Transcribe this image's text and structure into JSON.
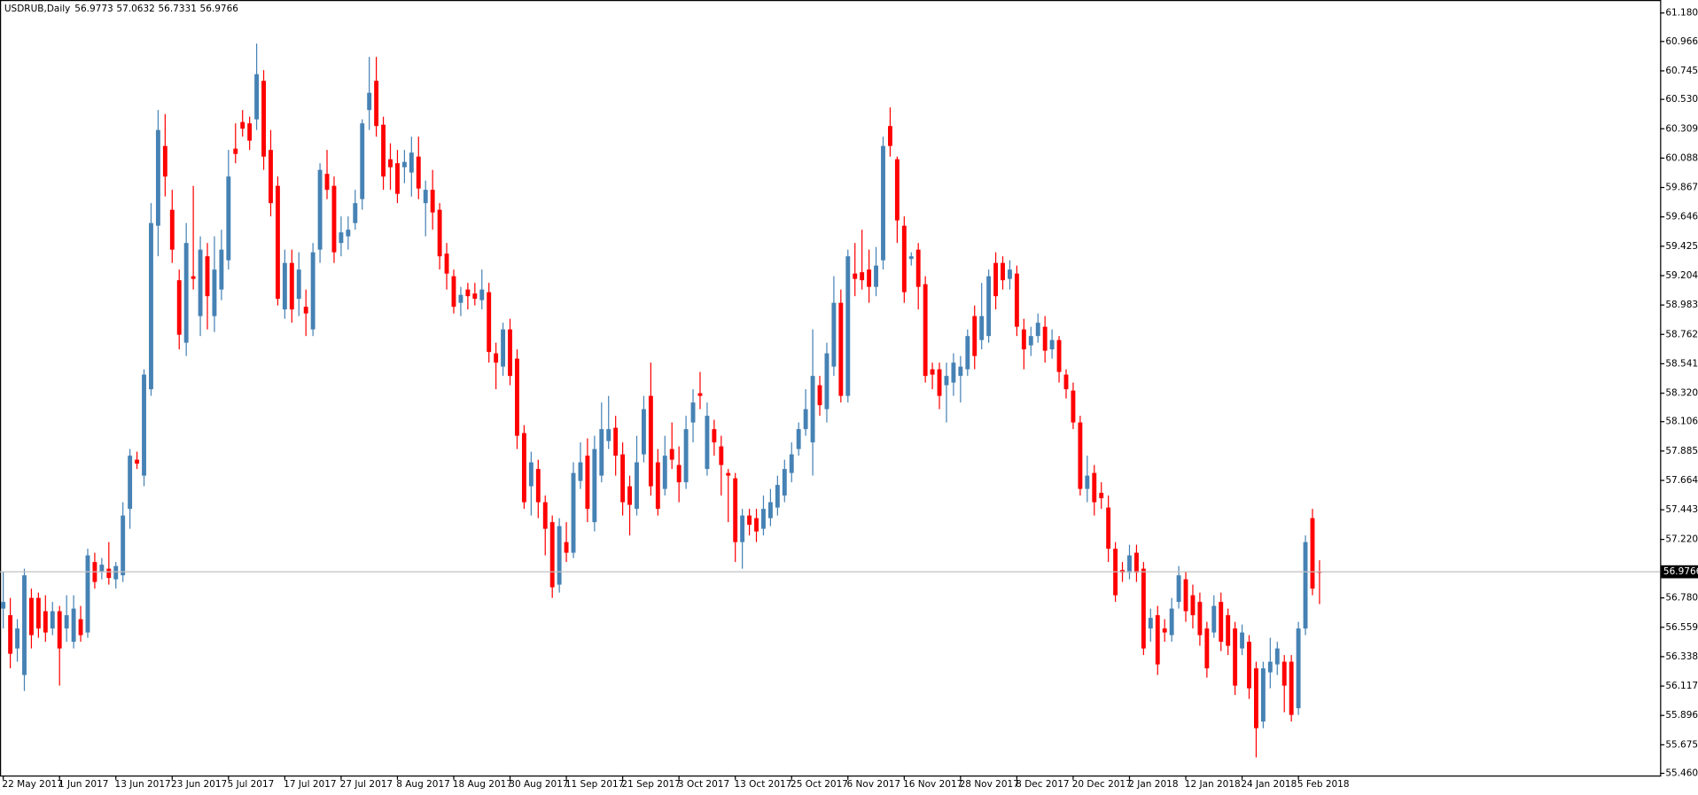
{
  "chart_data": {
    "type": "candlestick",
    "title": "USDRUB,Daily",
    "up_color": "#4682b4",
    "down_color": "#ff0000",
    "price_line_color": "#c0c0c0",
    "ylim": [
      55.444,
      61.278
    ],
    "yticks": [
      {
        "value": 61.1805,
        "label": "61.1805"
      },
      {
        "value": 60.966,
        "label": "60.9660"
      },
      {
        "value": 60.745,
        "label": "60.7450"
      },
      {
        "value": 60.5305,
        "label": "60.5305"
      },
      {
        "value": 60.3095,
        "label": "60.3095"
      },
      {
        "value": 60.0885,
        "label": "60.0885"
      },
      {
        "value": 59.8675,
        "label": "59.8675"
      },
      {
        "value": 59.6465,
        "label": "59.6465"
      },
      {
        "value": 59.4255,
        "label": "59.4255"
      },
      {
        "value": 59.2045,
        "label": "59.2045"
      },
      {
        "value": 58.9835,
        "label": "58.9835"
      },
      {
        "value": 58.7625,
        "label": "58.7625"
      },
      {
        "value": 58.5415,
        "label": "58.5415"
      },
      {
        "value": 58.32,
        "label": "58.3200"
      },
      {
        "value": 58.106,
        "label": "58.1060"
      },
      {
        "value": 57.885,
        "label": "57.8850"
      },
      {
        "value": 57.664,
        "label": "57.6640"
      },
      {
        "value": 57.443,
        "label": "57.4430"
      },
      {
        "value": 57.22,
        "label": "57.2200"
      },
      {
        "value": 56.78,
        "label": "56.7800"
      },
      {
        "value": 56.559,
        "label": "56.5590"
      },
      {
        "value": 56.338,
        "label": "56.3380"
      },
      {
        "value": 56.117,
        "label": "56.1170"
      },
      {
        "value": 55.896,
        "label": "55.8960"
      },
      {
        "value": 55.675,
        "label": "55.6750"
      },
      {
        "value": 55.4605,
        "label": "55.4605"
      }
    ],
    "categories": [
      "22 May 2017",
      null,
      null,
      null,
      null,
      null,
      null,
      null,
      "1 Jun 2017",
      null,
      null,
      null,
      null,
      null,
      null,
      null,
      "13 Jun 2017",
      null,
      null,
      null,
      null,
      null,
      null,
      null,
      "23 Jun 2017",
      null,
      null,
      null,
      null,
      null,
      null,
      null,
      "5 Jul 2017",
      null,
      null,
      null,
      null,
      null,
      null,
      null,
      "17 Jul 2017",
      null,
      null,
      null,
      null,
      null,
      null,
      null,
      "27 Jul 2017",
      null,
      null,
      null,
      null,
      null,
      null,
      null,
      "8 Aug 2017",
      null,
      null,
      null,
      null,
      null,
      null,
      null,
      "18 Aug 2017",
      null,
      null,
      null,
      null,
      null,
      null,
      null,
      "30 Aug 2017",
      null,
      null,
      null,
      null,
      null,
      null,
      null,
      "11 Sep 2017",
      null,
      null,
      null,
      null,
      null,
      null,
      null,
      "21 Sep 2017",
      null,
      null,
      null,
      null,
      null,
      null,
      null,
      "3 Oct 2017",
      null,
      null,
      null,
      null,
      null,
      null,
      null,
      "13 Oct 2017",
      null,
      null,
      null,
      null,
      null,
      null,
      null,
      "25 Oct 2017",
      null,
      null,
      null,
      null,
      null,
      null,
      null,
      "6 Nov 2017",
      null,
      null,
      null,
      null,
      null,
      null,
      null,
      "16 Nov 2017",
      null,
      null,
      null,
      null,
      null,
      null,
      null,
      "28 Nov 2017",
      null,
      null,
      null,
      null,
      null,
      null,
      null,
      "8 Dec 2017",
      null,
      null,
      null,
      null,
      null,
      null,
      null,
      "20 Dec 2017",
      null,
      null,
      null,
      null,
      null,
      null,
      null,
      "2 Jan 2018",
      null,
      null,
      null,
      null,
      null,
      null,
      null,
      "12 Jan 2018",
      null,
      null,
      null,
      null,
      null,
      null,
      null,
      "24 Jan 2018",
      null,
      null,
      null,
      null,
      null,
      null,
      null,
      "5 Feb 2018",
      null,
      null,
      null
    ],
    "open": [
      56.7,
      56.65,
      56.4,
      56.2,
      56.78,
      56.78,
      56.68,
      56.55,
      56.68,
      56.55,
      56.45,
      56.62,
      56.52,
      57.05,
      56.98,
      57.0,
      56.92,
      56.95,
      57.45,
      57.82,
      57.7,
      58.35,
      59.58,
      60.18,
      59.7,
      59.17,
      58.7,
      59.2,
      58.9,
      59.35,
      58.9,
      59.1,
      59.32,
      60.16,
      60.36,
      60.35,
      60.38,
      60.67,
      60.15,
      59.88,
      58.95,
      59.3,
      59.03,
      58.97,
      58.8,
      59.4,
      59.97,
      59.88,
      59.45,
      59.5,
      59.6,
      59.78,
      60.45,
      60.67,
      60.34,
      60.08,
      60.05,
      60.02,
      59.98,
      60.1,
      59.75,
      59.85,
      59.7,
      59.37,
      59.2,
      59.0,
      59.1,
      59.07,
      59.02,
      59.08,
      58.62,
      58.52,
      58.8,
      58.58,
      58.02,
      57.62,
      57.75,
      57.5,
      57.35,
      56.88,
      57.2,
      57.12,
      57.66,
      57.85,
      57.35,
      57.7,
      57.96,
      58.06,
      57.86,
      57.62,
      57.45,
      57.86,
      58.3,
      57.8,
      57.6,
      57.9,
      57.78,
      57.65,
      58.1,
      58.32,
      57.75,
      58.05,
      57.92,
      57.72,
      57.68,
      57.2,
      57.4,
      57.38,
      57.3,
      57.38,
      57.46,
      57.55,
      57.72,
      57.9,
      58.05,
      57.95,
      58.38,
      58.2,
      58.52,
      59.0,
      58.3,
      59.22,
      59.23,
      59.25,
      59.12,
      59.32,
      60.33,
      60.08,
      59.58,
      59.33,
      59.4,
      59.14,
      58.5,
      58.5,
      58.38,
      58.4,
      58.45,
      58.5,
      58.9,
      58.72,
      58.75,
      59.3,
      59.3,
      59.18,
      59.22,
      58.8,
      58.68,
      58.75,
      58.82,
      58.65,
      58.72,
      58.46,
      58.34,
      58.1,
      57.6,
      57.72,
      57.57,
      57.46,
      57.15,
      56.99,
      56.97,
      57.12,
      57.0,
      56.55,
      56.65,
      56.55,
      56.5,
      56.75,
      56.92,
      56.8,
      56.75,
      56.55,
      56.52,
      56.75,
      56.65,
      56.55,
      56.4,
      56.45,
      56.25,
      55.85,
      56.22,
      56.28,
      56.3,
      56.3,
      55.95,
      56.55,
      57.38,
      56.9773
    ],
    "high": [
      56.98,
      56.78,
      56.62,
      57.0,
      56.85,
      56.82,
      56.8,
      56.75,
      56.72,
      56.8,
      56.8,
      56.72,
      57.15,
      57.12,
      57.08,
      57.2,
      57.05,
      57.5,
      57.9,
      57.88,
      58.5,
      59.75,
      60.45,
      60.42,
      59.85,
      59.25,
      59.6,
      59.88,
      59.5,
      59.45,
      59.5,
      59.55,
      60.15,
      60.35,
      60.45,
      60.4,
      60.95,
      60.75,
      60.3,
      59.95,
      59.4,
      59.4,
      59.38,
      59.1,
      59.45,
      60.05,
      60.15,
      59.95,
      59.65,
      59.65,
      59.85,
      60.38,
      60.85,
      60.85,
      60.4,
      60.2,
      60.15,
      60.15,
      60.25,
      60.25,
      59.92,
      60.0,
      59.75,
      59.45,
      59.25,
      59.12,
      59.15,
      59.15,
      59.25,
      59.15,
      58.7,
      58.85,
      58.88,
      58.65,
      58.08,
      57.88,
      57.82,
      57.55,
      57.4,
      57.38,
      57.35,
      57.8,
      57.95,
      57.98,
      58.0,
      58.25,
      58.3,
      58.15,
      57.95,
      57.7,
      58.0,
      58.3,
      58.55,
      57.9,
      58.0,
      58.1,
      57.92,
      58.15,
      58.35,
      58.48,
      58.25,
      58.12,
      58.0,
      57.75,
      57.72,
      57.45,
      57.45,
      57.45,
      57.55,
      57.6,
      57.7,
      57.82,
      57.95,
      58.1,
      58.35,
      58.8,
      58.45,
      58.7,
      59.2,
      59.1,
      59.4,
      59.45,
      59.55,
      59.4,
      59.42,
      60.25,
      60.47,
      60.1,
      59.65,
      59.38,
      59.45,
      59.2,
      58.55,
      58.55,
      58.55,
      58.62,
      58.6,
      58.8,
      58.98,
      59.15,
      59.25,
      59.38,
      59.35,
      59.32,
      59.28,
      58.88,
      58.82,
      58.92,
      58.9,
      58.8,
      58.75,
      58.5,
      58.4,
      58.15,
      57.85,
      57.78,
      57.65,
      57.55,
      57.2,
      57.05,
      57.18,
      57.18,
      57.05,
      56.7,
      56.72,
      56.62,
      56.78,
      57.02,
      56.98,
      56.88,
      56.82,
      56.6,
      56.8,
      56.82,
      56.7,
      56.6,
      56.58,
      56.5,
      56.3,
      56.3,
      56.48,
      56.45,
      56.35,
      56.35,
      56.6,
      57.25,
      57.45,
      57.0632
    ],
    "low": [
      56.55,
      56.25,
      56.3,
      56.08,
      56.4,
      56.48,
      56.45,
      56.5,
      56.12,
      56.45,
      56.4,
      56.45,
      56.48,
      56.85,
      56.92,
      56.88,
      56.85,
      56.9,
      57.3,
      57.75,
      57.62,
      58.3,
      59.35,
      59.8,
      59.3,
      58.65,
      58.6,
      59.1,
      58.75,
      58.8,
      58.78,
      59.02,
      59.25,
      60.05,
      60.25,
      60.15,
      60.3,
      60.0,
      59.65,
      58.98,
      58.88,
      58.85,
      58.9,
      58.75,
      58.75,
      59.3,
      59.78,
      59.3,
      59.35,
      59.4,
      59.55,
      59.7,
      60.3,
      60.25,
      59.85,
      59.85,
      59.75,
      59.9,
      59.8,
      59.78,
      59.5,
      59.55,
      59.25,
      59.1,
      58.92,
      58.9,
      58.95,
      58.98,
      58.95,
      58.55,
      58.35,
      58.45,
      58.38,
      57.9,
      57.45,
      57.4,
      57.38,
      57.1,
      56.78,
      56.82,
      57.05,
      57.08,
      57.6,
      57.35,
      57.28,
      57.65,
      57.9,
      57.7,
      57.4,
      57.25,
      57.4,
      57.8,
      57.55,
      57.4,
      57.55,
      57.75,
      57.5,
      57.6,
      57.95,
      58.2,
      57.7,
      57.85,
      57.55,
      57.35,
      57.05,
      57.0,
      57.25,
      57.2,
      57.25,
      57.32,
      57.4,
      57.5,
      57.65,
      57.85,
      58.0,
      57.7,
      58.15,
      58.1,
      58.45,
      58.25,
      58.25,
      59.05,
      59.1,
      59.0,
      59.05,
      59.25,
      60.1,
      59.45,
      59.0,
      59.28,
      58.95,
      58.4,
      58.35,
      58.2,
      58.1,
      58.3,
      58.25,
      58.45,
      58.5,
      58.65,
      58.7,
      58.95,
      59.1,
      59.1,
      58.75,
      58.5,
      58.6,
      58.7,
      58.55,
      58.58,
      58.4,
      58.28,
      58.05,
      57.55,
      57.5,
      57.4,
      57.45,
      57.05,
      56.75,
      56.9,
      56.92,
      56.9,
      56.35,
      56.45,
      56.2,
      56.45,
      56.45,
      56.7,
      56.6,
      56.55,
      56.42,
      56.18,
      56.48,
      56.38,
      56.35,
      56.05,
      56.35,
      56.02,
      55.58,
      55.8,
      56.1,
      56.2,
      55.92,
      55.85,
      55.9,
      56.5,
      56.8,
      56.7331
    ],
    "close": [
      56.75,
      56.36,
      56.55,
      56.95,
      56.5,
      56.55,
      56.52,
      56.68,
      56.4,
      56.65,
      56.7,
      56.5,
      57.1,
      56.9,
      57.03,
      56.93,
      57.02,
      57.4,
      57.85,
      57.79,
      58.46,
      59.6,
      60.3,
      59.95,
      59.4,
      58.76,
      59.45,
      59.18,
      59.4,
      59.05,
      59.25,
      59.4,
      59.95,
      60.12,
      60.31,
      60.22,
      60.72,
      60.1,
      59.75,
      59.03,
      59.3,
      58.95,
      59.25,
      58.92,
      59.38,
      60.0,
      59.85,
      59.38,
      59.53,
      59.55,
      59.75,
      60.35,
      60.58,
      60.33,
      59.95,
      60.02,
      59.82,
      60.06,
      60.13,
      59.86,
      59.85,
      59.68,
      59.35,
      59.22,
      58.97,
      59.06,
      59.05,
      59.03,
      59.1,
      58.63,
      58.55,
      58.8,
      58.45,
      58.0,
      57.5,
      57.8,
      57.5,
      57.3,
      56.86,
      57.32,
      57.12,
      57.72,
      57.8,
      57.45,
      57.9,
      58.05,
      58.05,
      57.85,
      57.5,
      57.48,
      57.8,
      58.2,
      57.62,
      57.45,
      57.85,
      57.82,
      57.65,
      58.05,
      58.25,
      58.3,
      58.15,
      57.95,
      57.78,
      57.7,
      57.2,
      57.4,
      57.33,
      57.28,
      57.45,
      57.5,
      57.63,
      57.75,
      57.86,
      58.05,
      58.2,
      58.45,
      58.23,
      58.62,
      59.0,
      58.3,
      59.35,
      59.18,
      59.17,
      59.12,
      59.28,
      60.18,
      60.18,
      59.62,
      59.08,
      59.35,
      59.12,
      58.45,
      58.46,
      58.3,
      58.45,
      58.55,
      58.52,
      58.75,
      58.6,
      58.9,
      59.2,
      59.05,
      59.17,
      59.25,
      58.82,
      58.65,
      58.75,
      58.85,
      58.64,
      58.72,
      58.48,
      58.35,
      58.1,
      57.6,
      57.7,
      57.5,
      57.53,
      57.15,
      56.8,
      56.97,
      57.1,
      56.97,
      56.4,
      56.63,
      56.28,
      56.52,
      56.7,
      56.95,
      56.68,
      56.65,
      56.5,
      56.25,
      56.72,
      56.45,
      56.42,
      56.12,
      56.52,
      56.1,
      55.8,
      56.25,
      56.3,
      56.4,
      56.12,
      55.9,
      56.55,
      57.2,
      56.85,
      56.9766
    ]
  }
}
